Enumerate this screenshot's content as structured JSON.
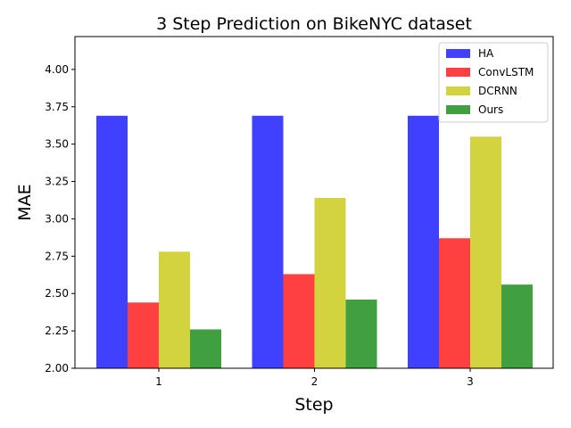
{
  "chart_data": {
    "type": "bar",
    "title": "3 Step Prediction on BikeNYC dataset",
    "xlabel": "Step",
    "ylabel": "MAE",
    "categories": [
      "1",
      "2",
      "3"
    ],
    "ylim": [
      2.0,
      4.22
    ],
    "yticks": [
      "2.00",
      "2.25",
      "2.50",
      "2.75",
      "3.00",
      "3.25",
      "3.50",
      "3.75",
      "4.00"
    ],
    "grid": false,
    "legend_position": "top-right",
    "series": [
      {
        "name": "HA",
        "color": "#4040ff",
        "values": [
          3.69,
          3.69,
          3.69
        ]
      },
      {
        "name": "ConvLSTM",
        "color": "#ff4040",
        "values": [
          2.44,
          2.63,
          2.87
        ]
      },
      {
        "name": "DCRNN",
        "color": "#d3d340",
        "values": [
          2.78,
          3.14,
          3.55
        ]
      },
      {
        "name": "Ours",
        "color": "#40a040",
        "values": [
          2.26,
          2.46,
          2.56
        ]
      }
    ]
  }
}
